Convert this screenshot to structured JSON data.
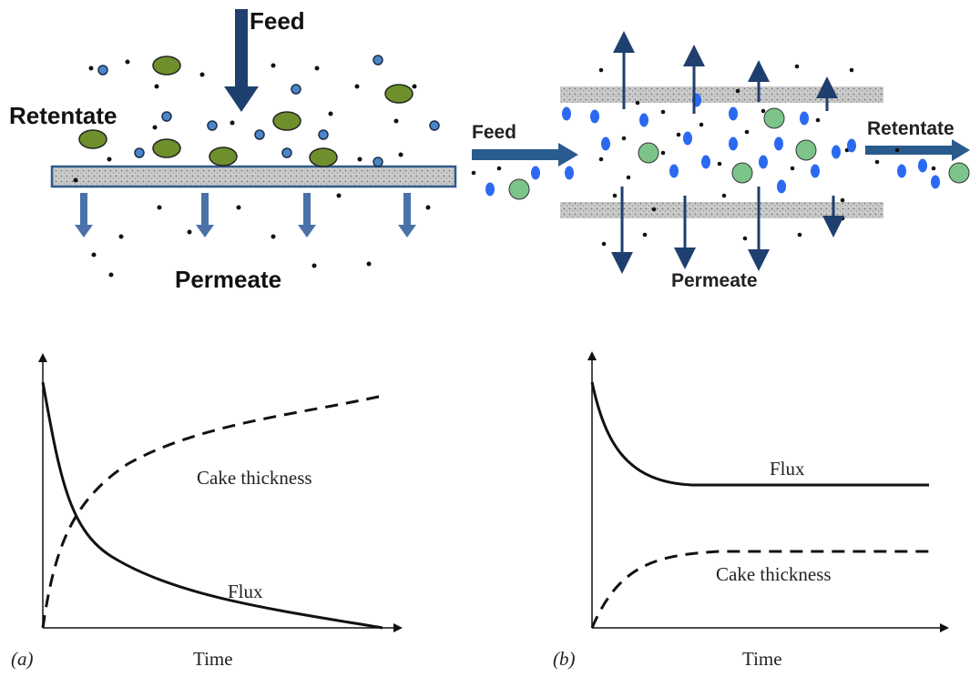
{
  "dead_end": {
    "feed": "Feed",
    "retentate": "Retentate",
    "permeate": "Permeate"
  },
  "cross_flow": {
    "feed": "Feed",
    "retentate": "Retentate",
    "permeate": "Permeate"
  },
  "plots": [
    {
      "panel": "(a)",
      "x_axis": "Time",
      "flux": "Flux",
      "cake": "Cake thickness"
    },
    {
      "panel": "(b)",
      "x_axis": "Time",
      "flux": "Flux",
      "cake": "Cake thickness"
    }
  ]
}
